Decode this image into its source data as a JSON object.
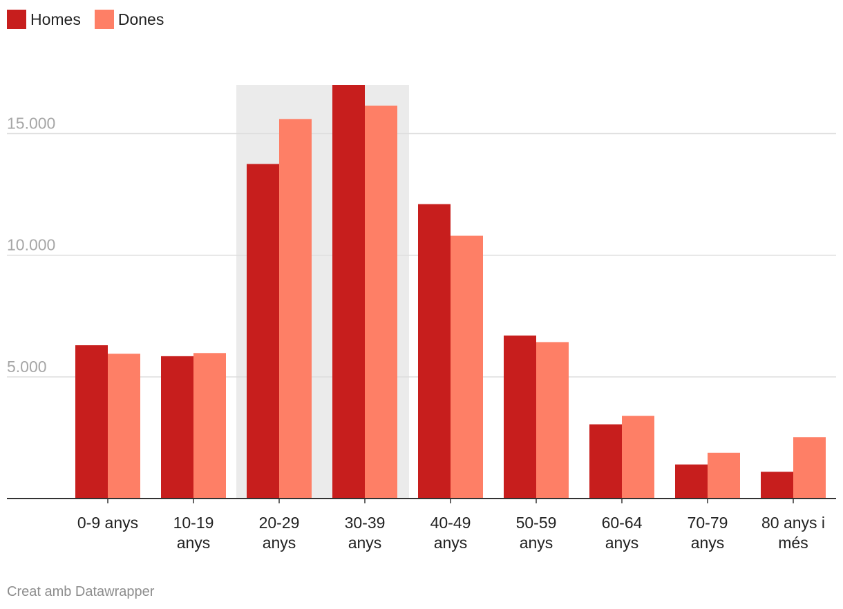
{
  "chart_data": {
    "type": "bar",
    "categories": [
      "0-9 anys",
      "10-19 anys",
      "20-29 anys",
      "30-39 anys",
      "40-49 anys",
      "50-59 anys",
      "60-64 anys",
      "70-79 anys",
      "80 anys i més"
    ],
    "category_lines": [
      [
        "0-9 anys"
      ],
      [
        "10-19",
        "anys"
      ],
      [
        "20-29",
        "anys"
      ],
      [
        "30-39",
        "anys"
      ],
      [
        "40-49",
        "anys"
      ],
      [
        "50-59",
        "anys"
      ],
      [
        "60-64",
        "anys"
      ],
      [
        "70-79",
        "anys"
      ],
      [
        "80 anys i",
        "més"
      ]
    ],
    "series": [
      {
        "name": "Homes",
        "color": "#c71e1d",
        "values": [
          6300,
          5850,
          13750,
          17000,
          12100,
          6700,
          3050,
          1400,
          1100
        ]
      },
      {
        "name": "Dones",
        "color": "#fe7f66",
        "values": [
          5950,
          5980,
          15600,
          16150,
          10800,
          6430,
          3400,
          1880,
          2520
        ]
      }
    ],
    "yticks": [
      {
        "value": 5000,
        "label": "5.000"
      },
      {
        "value": 10000,
        "label": "10.000"
      },
      {
        "value": 15000,
        "label": "15.000"
      }
    ],
    "ylim": [
      0,
      17000
    ],
    "highlight_categories": [
      "20-29 anys",
      "30-39 anys"
    ],
    "highlight_color": "#ebebeb",
    "grid": true,
    "legend_position": "top-left",
    "title": "",
    "xlabel": "",
    "ylabel": ""
  },
  "footer": {
    "credit": "Creat amb Datawrapper"
  }
}
